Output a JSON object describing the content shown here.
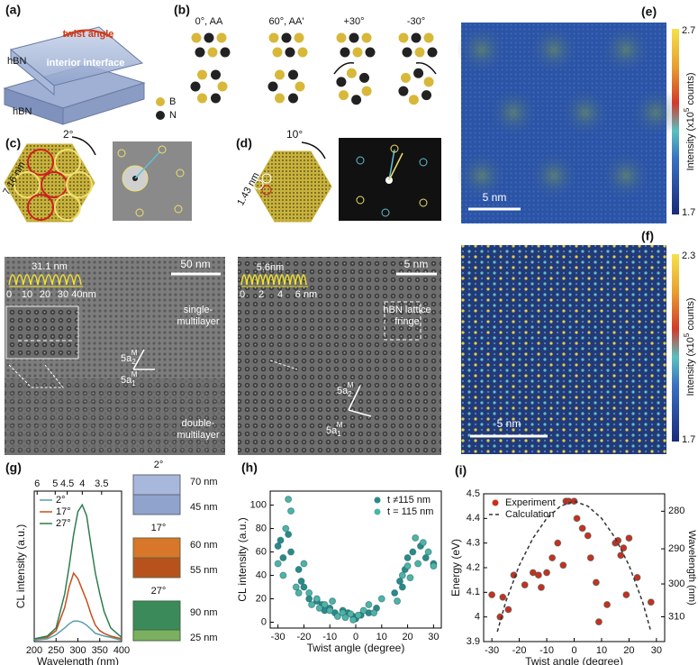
{
  "panels": {
    "a": {
      "label": "(a)",
      "twist": "twist angle",
      "interface": "interior interface",
      "top": "hBN",
      "bottom": "hBN"
    },
    "b": {
      "label": "(b)",
      "columns": [
        "0°, AA",
        "60°, AA'",
        "+30°",
        "-30°"
      ],
      "legend": [
        "B",
        "N"
      ]
    },
    "c": {
      "label": "(c)",
      "angle": "2°",
      "period": "7.16 nm",
      "inset_period": "31.1 nm",
      "inset_ticks": [
        "0",
        "10",
        "20",
        "30",
        "40nm"
      ],
      "scale": "50 nm",
      "region1": [
        "single-",
        "multilayer"
      ],
      "region2": [
        "double-",
        "multilayer"
      ],
      "vectors": [
        {
          "base": "5a",
          "sub": "2",
          "sup": "M"
        },
        {
          "base": "5a",
          "sub": "1",
          "sup": "M"
        }
      ]
    },
    "d": {
      "label": "(d)",
      "angle": "10°",
      "period": "1.43 nm",
      "inset_period": "5.6nm",
      "inset_ticks": [
        "0",
        "2",
        "4",
        "6 nm"
      ],
      "scale": "5 nm",
      "region1": [
        "hBN lattice",
        "fringe"
      ],
      "vectors": [
        {
          "base": "5a",
          "sub": "2",
          "sup": "M"
        },
        {
          "base": "5a",
          "sub": "1",
          "sup": "M"
        }
      ]
    },
    "e": {
      "label": "(e)",
      "cbar_max": "2.7",
      "cbar_min": "1.7",
      "cbar_title": [
        "Intensity (x10",
        "5",
        " counts)"
      ],
      "scale": "5 nm"
    },
    "f": {
      "label": "(f)",
      "cbar_max": "2.3",
      "cbar_min": "1.7",
      "cbar_title": [
        "Intensity (x10",
        "5",
        " counts)"
      ],
      "scale": "5 nm"
    },
    "g_boxes": [
      {
        "angle": "2°",
        "top": "70 nm",
        "bottom": "45 nm"
      },
      {
        "angle": "17°",
        "top": "60 nm",
        "bottom": "55 nm"
      },
      {
        "angle": "27°",
        "top": "90 nm",
        "bottom": "25 nm"
      }
    ]
  },
  "chart_data": [
    {
      "type": "line",
      "label": "(g)",
      "x_label": "Wavelength (nm)",
      "y_label": "CL intensity (a.u.)",
      "x": [
        200,
        230,
        250,
        270,
        280,
        290,
        300,
        310,
        320,
        330,
        340,
        350,
        360,
        375,
        400
      ],
      "xlim": [
        200,
        400
      ],
      "xticks": [
        200,
        250,
        300,
        350,
        400
      ],
      "x2lim": [
        6.2,
        3.1
      ],
      "x2scale": "reciprocal",
      "x2ticks": [
        6,
        5,
        4.5,
        4,
        3.5
      ],
      "ylim": [
        0,
        1.1
      ],
      "legend": "upper left",
      "series": [
        {
          "name": "2°",
          "color": "#5a9fa8",
          "values": [
            0.01,
            0.02,
            0.05,
            0.1,
            0.13,
            0.15,
            0.15,
            0.14,
            0.12,
            0.09,
            0.06,
            0.05,
            0.04,
            0.03,
            0.01
          ]
        },
        {
          "name": "17°",
          "color": "#c4501c",
          "values": [
            0.02,
            0.03,
            0.08,
            0.25,
            0.4,
            0.5,
            0.46,
            0.38,
            0.3,
            0.2,
            0.12,
            0.08,
            0.06,
            0.04,
            0.02
          ]
        },
        {
          "name": "27°",
          "color": "#2e7d4f",
          "values": [
            0.02,
            0.04,
            0.1,
            0.35,
            0.55,
            0.78,
            0.95,
            1.0,
            0.92,
            0.7,
            0.5,
            0.35,
            0.22,
            0.1,
            0.03
          ]
        }
      ]
    },
    {
      "type": "scatter",
      "label": "(h)",
      "x_label": "Twist angle (degree)",
      "y_label": "CL intensity (a.u.)",
      "xlim": [
        -33,
        33
      ],
      "xticks": [
        -30,
        -20,
        -10,
        0,
        10,
        20,
        30
      ],
      "ylim": [
        -5,
        112
      ],
      "yticks": [
        0,
        20,
        40,
        60,
        80,
        100
      ],
      "legend": "upper right",
      "series": [
        {
          "name": "t ≠115 nm",
          "color": "#2a8a8a",
          "x": [
            -30,
            -29,
            -28,
            -26,
            -25,
            -22,
            -21,
            -20,
            -18,
            -15,
            -13,
            -12,
            -10,
            -8,
            -5,
            -3,
            -1,
            0,
            2,
            5,
            8,
            15,
            17,
            18,
            19,
            20,
            22,
            25,
            27,
            30
          ],
          "values": [
            65,
            70,
            55,
            75,
            60,
            45,
            35,
            30,
            20,
            18,
            15,
            10,
            12,
            8,
            10,
            8,
            5,
            3,
            6,
            8,
            12,
            25,
            35,
            30,
            45,
            55,
            60,
            65,
            55,
            50
          ]
        },
        {
          "name": "t = 115 nm",
          "color": "#4fb3a8",
          "x": [
            -30,
            -28,
            -27,
            -26,
            -25,
            -23,
            -22,
            -20,
            -18,
            -17,
            -15,
            -14,
            -12,
            -10,
            -9,
            -7,
            -5,
            -4,
            -2,
            -1,
            1,
            3,
            5,
            7,
            10,
            16,
            18,
            20,
            21,
            23,
            24,
            26,
            28,
            30
          ],
          "values": [
            50,
            40,
            80,
            105,
            95,
            30,
            25,
            50,
            25,
            15,
            20,
            12,
            15,
            10,
            18,
            5,
            8,
            4,
            7,
            2,
            6,
            10,
            15,
            8,
            20,
            18,
            40,
            48,
            38,
            72,
            50,
            68,
            60,
            48
          ]
        }
      ]
    },
    {
      "type": "scatter",
      "label": "(i)",
      "x_label": "Twist angle (degree)",
      "y_label": "Energy (eV)",
      "y2_label": "Wavelength (nm)",
      "xlim": [
        -33,
        33
      ],
      "xticks": [
        -30,
        -20,
        -10,
        0,
        10,
        20,
        30
      ],
      "ylim": [
        3.9,
        4.5
      ],
      "yticks": [
        3.9,
        4.0,
        4.1,
        4.2,
        4.3,
        4.4,
        4.5
      ],
      "y2lim": [
        318,
        275.6
      ],
      "y2scale": "reciprocal",
      "y2ticks": [
        280,
        290,
        300,
        310
      ],
      "legend": "upper left",
      "series": [
        {
          "name": "Experiment",
          "color": "#c8301e",
          "x": [
            -30,
            -27,
            -26,
            -24,
            -22,
            -18,
            -15,
            -13,
            -12,
            -10,
            -8,
            -6,
            -4,
            -3,
            -2,
            0,
            1,
            3,
            5,
            6,
            8,
            9,
            12,
            15,
            16,
            17,
            18,
            19,
            20,
            23,
            28
          ],
          "values": [
            4.09,
            4.0,
            4.08,
            4.03,
            4.17,
            4.13,
            4.18,
            4.17,
            4.12,
            4.18,
            4.24,
            4.3,
            4.21,
            4.47,
            4.47,
            4.47,
            4.4,
            4.36,
            4.33,
            4.24,
            4.14,
            3.98,
            4.05,
            4.3,
            4.31,
            4.25,
            4.28,
            4.09,
            4.32,
            4.16,
            4.06
          ]
        },
        {
          "name": "Calculation",
          "color": "#333333",
          "line": "dashed",
          "x": [
            -28,
            -25,
            -20,
            -15,
            -10,
            -5,
            0,
            5,
            10,
            15,
            20,
            25,
            28
          ],
          "values": [
            3.94,
            4.06,
            4.21,
            4.32,
            4.4,
            4.45,
            4.47,
            4.45,
            4.4,
            4.32,
            4.21,
            4.06,
            3.94
          ]
        }
      ]
    }
  ]
}
